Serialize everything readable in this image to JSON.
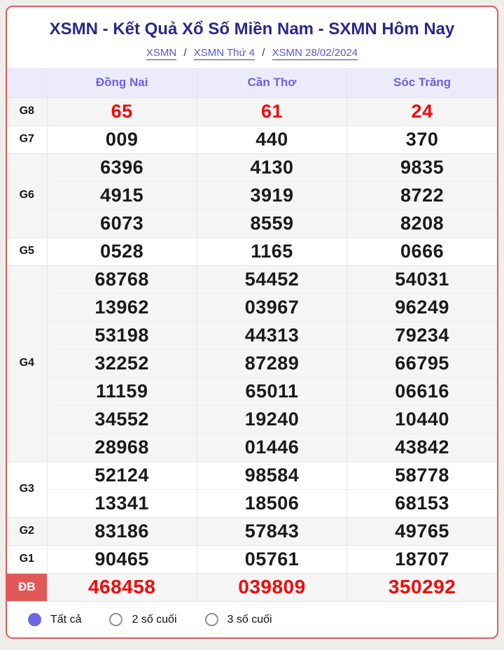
{
  "header": {
    "title": "XSMN - Kết Quả Xổ Số Miền Nam - SXMN Hôm Nay",
    "breadcrumb": [
      {
        "label": "XSMN"
      },
      {
        "label": "XSMN Thứ 4"
      },
      {
        "label": "XSMN 28/02/2024"
      }
    ],
    "separator": "/"
  },
  "table": {
    "province_columns": [
      "Đồng Nai",
      "Cần Thơ",
      "Sóc Trăng"
    ],
    "prize_groups": [
      {
        "key": "g8",
        "label": "G8",
        "value_color": "red",
        "subrows": [
          [
            "65",
            "61",
            "24"
          ]
        ]
      },
      {
        "key": "g7",
        "label": "G7",
        "subrows": [
          [
            "009",
            "440",
            "370"
          ]
        ]
      },
      {
        "key": "g6",
        "label": "G6",
        "subrows": [
          [
            "6396",
            "4130",
            "9835"
          ],
          [
            "4915",
            "3919",
            "8722"
          ],
          [
            "6073",
            "8559",
            "8208"
          ]
        ]
      },
      {
        "key": "g5",
        "label": "G5",
        "subrows": [
          [
            "0528",
            "1165",
            "0666"
          ]
        ]
      },
      {
        "key": "g4",
        "label": "G4",
        "subrows": [
          [
            "68768",
            "54452",
            "54031"
          ],
          [
            "13962",
            "03967",
            "96249"
          ],
          [
            "53198",
            "44313",
            "79234"
          ],
          [
            "32252",
            "87289",
            "66795"
          ],
          [
            "11159",
            "65011",
            "06616"
          ],
          [
            "34552",
            "19240",
            "10440"
          ],
          [
            "28968",
            "01446",
            "43842"
          ]
        ]
      },
      {
        "key": "g3",
        "label": "G3",
        "subrows": [
          [
            "52124",
            "98584",
            "58778"
          ],
          [
            "13341",
            "18506",
            "68153"
          ]
        ]
      },
      {
        "key": "g2",
        "label": "G2",
        "subrows": [
          [
            "83186",
            "57843",
            "49765"
          ]
        ]
      },
      {
        "key": "g1",
        "label": "G1",
        "subrows": [
          [
            "90465",
            "05761",
            "18707"
          ]
        ]
      },
      {
        "key": "db",
        "label": "ĐB",
        "value_color": "red",
        "label_badge": true,
        "subrows": [
          [
            "468458",
            "039809",
            "350292"
          ]
        ]
      }
    ]
  },
  "filters": {
    "options": [
      {
        "key": "all",
        "label": "Tất cả",
        "selected": true
      },
      {
        "key": "last-2",
        "label": "2 số cuối",
        "selected": false
      },
      {
        "key": "last-3",
        "label": "3 số cuối",
        "selected": false
      }
    ]
  },
  "colors": {
    "card_border": "#e7595b",
    "title_text": "#29298e",
    "breadcrumb_link": "#5757e0",
    "header_bg": "#ecebf9",
    "header_text": "#6d5ee8",
    "row_alt_bg": "#f5f5f6",
    "value_red": "#f70707",
    "db_badge_bg": "#e15858",
    "radio_selected": "#6a68e4"
  }
}
